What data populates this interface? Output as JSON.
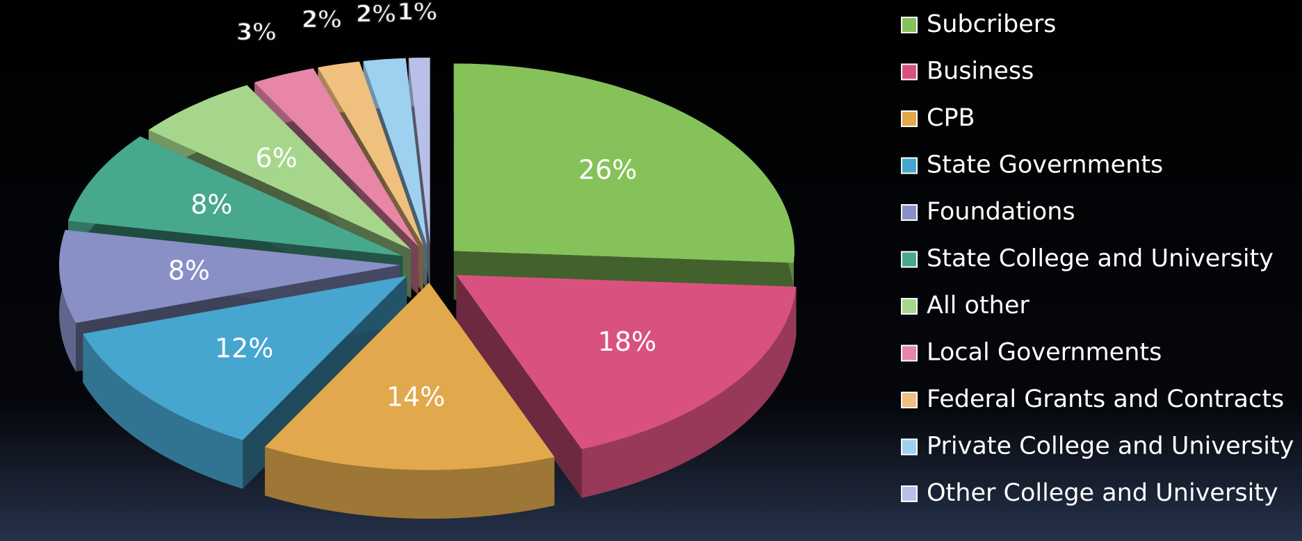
{
  "chart_data": {
    "type": "pie",
    "categories": [
      "Subcribers",
      "Business",
      "CPB",
      "State Governments",
      "Foundations",
      "State College and University",
      "All other",
      "Local Governments",
      "Federal Grants and Contracts",
      "Private College and University",
      "Other College and University"
    ],
    "values": [
      26,
      18,
      14,
      12,
      8,
      8,
      6,
      3,
      2,
      2,
      1
    ],
    "value_labels": [
      "26%",
      "18%",
      "14%",
      "12%",
      "8%",
      "8%",
      "6%",
      "3%",
      "2%",
      "2%",
      "1%"
    ],
    "colors": [
      "#86c25a",
      "#d9527f",
      "#e2a84c",
      "#46a6cf",
      "#8890c6",
      "#48a88e",
      "#a6d68c",
      "#e886a8",
      "#f0c07e",
      "#9ed0f0",
      "#b8c0e8"
    ],
    "legend": "right"
  }
}
